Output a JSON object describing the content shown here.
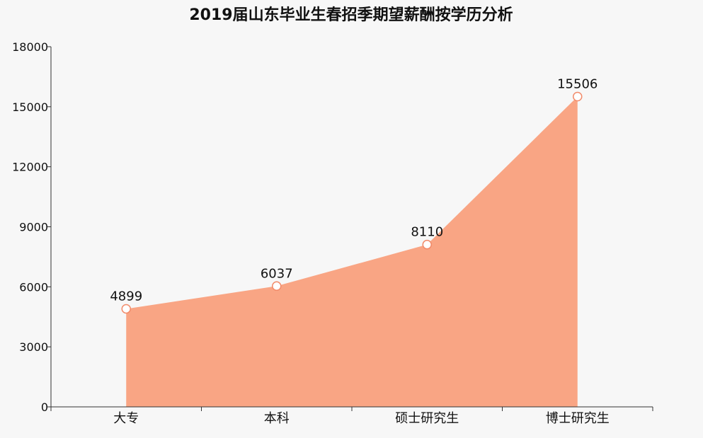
{
  "chart_data": {
    "type": "area",
    "title": "2019届山东毕业生春招季期望薪酬按学历分析",
    "xlabel": "",
    "ylabel": "",
    "categories": [
      "大专",
      "本科",
      "硕士研究生",
      "博士研究生"
    ],
    "series": [
      {
        "values": [
          4899,
          6037,
          8110,
          15506
        ]
      }
    ],
    "ylim": [
      0,
      18000
    ],
    "yticks": [
      0,
      3000,
      6000,
      9000,
      12000,
      15000,
      18000
    ],
    "grid": false,
    "legend": "none",
    "data_labels": true,
    "colors": {
      "area_fill": "#f9a584",
      "marker_stroke": "#f28b6a",
      "marker_fill": "#ffffff",
      "axis": "#333333",
      "background": "#f7f7f7"
    }
  }
}
